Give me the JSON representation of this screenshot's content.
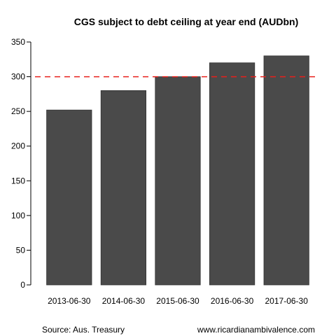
{
  "chart_data": {
    "type": "bar",
    "title": "CGS subject to debt ceiling at year end (AUDbn)",
    "categories": [
      "2013-06-30",
      "2014-06-30",
      "2015-06-30",
      "2016-06-30",
      "2017-06-30"
    ],
    "values": [
      252,
      280,
      300,
      320,
      330
    ],
    "ylim": [
      0,
      350
    ],
    "yticks": [
      "0",
      "50",
      "100",
      "150",
      "200",
      "250",
      "300",
      "350"
    ],
    "grid": false,
    "bar_color": "#4a4a4a",
    "reference_line": {
      "value": 300,
      "color": "#e8201c",
      "style": "dashed"
    }
  },
  "footer": {
    "source": "Source: Aus. Treasury",
    "site": "www.ricardianambivalence.com"
  }
}
